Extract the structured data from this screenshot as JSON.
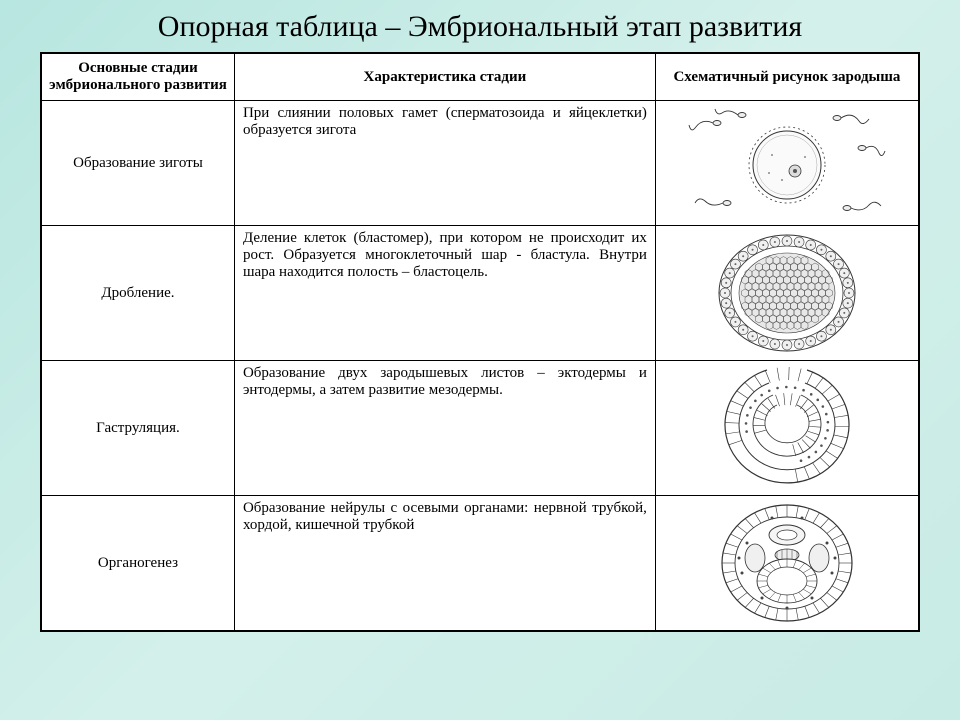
{
  "title": "Опорная таблица – Эмбриональный этап развития",
  "headers": {
    "col1": "Основные стадии эмбрионального развития",
    "col2": "Характеристика стадии",
    "col3": "Схематичный рисунок зародыша"
  },
  "rows": [
    {
      "stage": "Образование зиготы",
      "desc": "При слиянии половых гамет (сперматозоида и яйцеклетки) образуется зигота"
    },
    {
      "stage": "Дробление.",
      "desc": "Деление клеток (бластомер), при котором не происходит их рост. Образуется многоклеточный шар - бластула. Внутри шара находится полость – бластоцель."
    },
    {
      "stage": "Гаструляция.",
      "desc": "Образование двух зародышевых листов – эктодермы и энтодермы, а затем развитие мезодермы."
    },
    {
      "stage": "Органогенез",
      "desc": "Образование нейрулы с осевыми органами: нервной трубкой, хордой, кишечной трубкой"
    }
  ],
  "style": {
    "bg_gradient": [
      "#b8e6e0",
      "#d4f0eb",
      "#c8ebe5"
    ],
    "border_color": "#000000",
    "title_fontsize": 30,
    "cell_fontsize": 15,
    "svg_stroke": "#333333",
    "svg_fill_light": "#f5f5f5",
    "svg_fill_dots": "#888888"
  }
}
